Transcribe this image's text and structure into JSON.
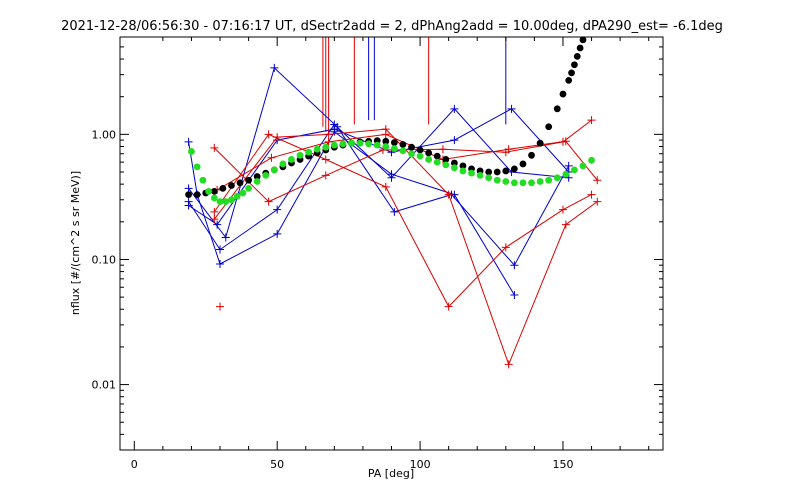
{
  "chart_data": {
    "type": "scatter",
    "title": "2021-12-28/06:56:30 - 07:16:17 UT, dSectr2add = 2, dPhAng2add = 10.00deg, dPA290_est=  -6.1deg",
    "xlabel": "PA [deg]",
    "ylabel": "nflux [#/(cm^2 s sr MeV)]",
    "xlim": [
      -5,
      185
    ],
    "ylim": [
      0.003,
      6
    ],
    "yscale": "log",
    "grid": false,
    "x_ticks": [
      0,
      50,
      100,
      150
    ],
    "x_tick_labels": [
      "0",
      "50",
      "100",
      "150"
    ],
    "y_ticks": [
      0.01,
      0.1,
      1.0
    ],
    "y_tick_labels": [
      "0.01",
      "0.10",
      "1.00"
    ],
    "colors": {
      "blue": "#0000cc",
      "red": "#dd0000",
      "fit_black": "#000000",
      "fit_green": "#22dd22",
      "axes": "#000000"
    },
    "series": [
      {
        "color": "blue",
        "kind": "line",
        "x": [
          19,
          22,
          30,
          50,
          70,
          90,
          112,
          133
        ],
        "y": [
          0.87,
          0.33,
          0.092,
          0.16,
          1.05,
          0.48,
          0.33,
          0.052
        ]
      },
      {
        "color": "blue",
        "kind": "line",
        "x": [
          19,
          32,
          49,
          71,
          91,
          111,
          133,
          152
        ],
        "y": [
          0.37,
          0.15,
          3.4,
          1.15,
          0.24,
          0.33,
          0.09,
          0.56
        ]
      },
      {
        "color": "blue",
        "kind": "line",
        "x": [
          19,
          30,
          50,
          70,
          90,
          112,
          132,
          152
        ],
        "y": [
          0.29,
          0.12,
          0.25,
          1.2,
          0.45,
          1.6,
          0.5,
          0.45
        ]
      },
      {
        "color": "blue",
        "kind": "line",
        "x": [
          19,
          29,
          50,
          70,
          90,
          112,
          132,
          152
        ],
        "y": [
          0.27,
          0.19,
          0.9,
          1.1,
          0.72,
          0.9,
          1.6,
          0.5
        ]
      },
      {
        "color": "red",
        "kind": "line",
        "x": [
          28,
          47,
          67,
          87,
          108,
          130,
          150,
          160
        ],
        "y": [
          0.78,
          0.29,
          0.47,
          0.75,
          0.76,
          0.72,
          0.87,
          1.3
        ]
      },
      {
        "color": "red",
        "kind": "line",
        "x": [
          28,
          47,
          67,
          88,
          110,
          130,
          150,
          160
        ],
        "y": [
          0.24,
          1.0,
          0.63,
          0.38,
          0.042,
          0.125,
          0.25,
          0.33
        ]
      },
      {
        "color": "red",
        "kind": "line",
        "x": [
          28,
          50,
          68,
          88,
          110,
          131,
          151,
          162
        ],
        "y": [
          0.21,
          0.95,
          1.0,
          1.1,
          0.33,
          0.0145,
          0.19,
          0.29
        ]
      },
      {
        "color": "red",
        "kind": "line",
        "x": [
          29,
          48,
          68,
          88,
          108,
          131,
          151,
          162
        ],
        "y": [
          0.36,
          0.65,
          0.87,
          1.0,
          0.63,
          0.76,
          0.88,
          0.43
        ]
      },
      {
        "color": "red",
        "kind": "point",
        "x": [
          30
        ],
        "y": [
          0.042
        ]
      },
      {
        "color": "black",
        "kind": "dots",
        "name": "",
        "x": [
          19,
          22,
          25,
          28,
          31,
          34,
          37,
          40,
          43,
          46,
          49,
          52,
          55,
          58,
          61,
          64,
          67,
          70,
          73,
          76,
          79,
          82,
          85,
          88,
          91,
          94,
          97,
          100,
          103,
          106,
          109,
          112,
          115,
          118,
          121,
          124,
          127,
          130,
          133,
          136,
          139,
          142,
          145,
          148,
          150,
          152,
          153,
          154,
          155,
          156,
          157
        ],
        "y": [
          0.33,
          0.33,
          0.34,
          0.35,
          0.37,
          0.39,
          0.41,
          0.43,
          0.46,
          0.49,
          0.52,
          0.55,
          0.59,
          0.63,
          0.67,
          0.71,
          0.75,
          0.79,
          0.82,
          0.85,
          0.87,
          0.88,
          0.89,
          0.88,
          0.86,
          0.83,
          0.79,
          0.75,
          0.71,
          0.67,
          0.63,
          0.59,
          0.56,
          0.53,
          0.51,
          0.5,
          0.5,
          0.51,
          0.53,
          0.58,
          0.68,
          0.85,
          1.15,
          1.6,
          2.1,
          2.7,
          3.1,
          3.6,
          4.2,
          4.9,
          5.7
        ]
      },
      {
        "color": "green",
        "kind": "dots",
        "name": "",
        "x": [
          20,
          22,
          24,
          26,
          28,
          30,
          32,
          34,
          36,
          38,
          40,
          43,
          46,
          49,
          52,
          55,
          58,
          61,
          64,
          67,
          70,
          73,
          76,
          79,
          82,
          85,
          88,
          91,
          94,
          97,
          100,
          103,
          106,
          109,
          112,
          115,
          118,
          121,
          124,
          127,
          130,
          133,
          136,
          139,
          142,
          145,
          148,
          151,
          154,
          157,
          160
        ],
        "y": [
          0.73,
          0.55,
          0.43,
          0.35,
          0.31,
          0.29,
          0.29,
          0.3,
          0.32,
          0.34,
          0.37,
          0.42,
          0.47,
          0.52,
          0.58,
          0.63,
          0.68,
          0.72,
          0.76,
          0.79,
          0.82,
          0.84,
          0.85,
          0.85,
          0.84,
          0.82,
          0.8,
          0.77,
          0.74,
          0.7,
          0.67,
          0.63,
          0.6,
          0.57,
          0.54,
          0.51,
          0.49,
          0.47,
          0.45,
          0.43,
          0.42,
          0.41,
          0.41,
          0.41,
          0.42,
          0.43,
          0.45,
          0.48,
          0.52,
          0.56,
          0.62
        ]
      }
    ],
    "vertical_markers": [
      {
        "color": "red",
        "x": 66,
        "y_top": 6.0,
        "y_bottom": 1.15
      },
      {
        "color": "red",
        "x": 67,
        "y_top": 6.0,
        "y_bottom": 1.05
      },
      {
        "color": "red",
        "x": 68,
        "y_top": 6.0,
        "y_bottom": 1.0
      },
      {
        "color": "red",
        "x": 77,
        "y_top": 6.0,
        "y_bottom": 1.2
      },
      {
        "color": "blue",
        "x": 82,
        "y_top": 6.0,
        "y_bottom": 1.3
      },
      {
        "color": "blue",
        "x": 84,
        "y_top": 6.0,
        "y_bottom": 1.3
      },
      {
        "color": "red",
        "x": 103,
        "y_top": 6.0,
        "y_bottom": 1.2
      },
      {
        "color": "blue",
        "x": 130,
        "y_top": 6.0,
        "y_bottom": 1.2
      }
    ]
  }
}
